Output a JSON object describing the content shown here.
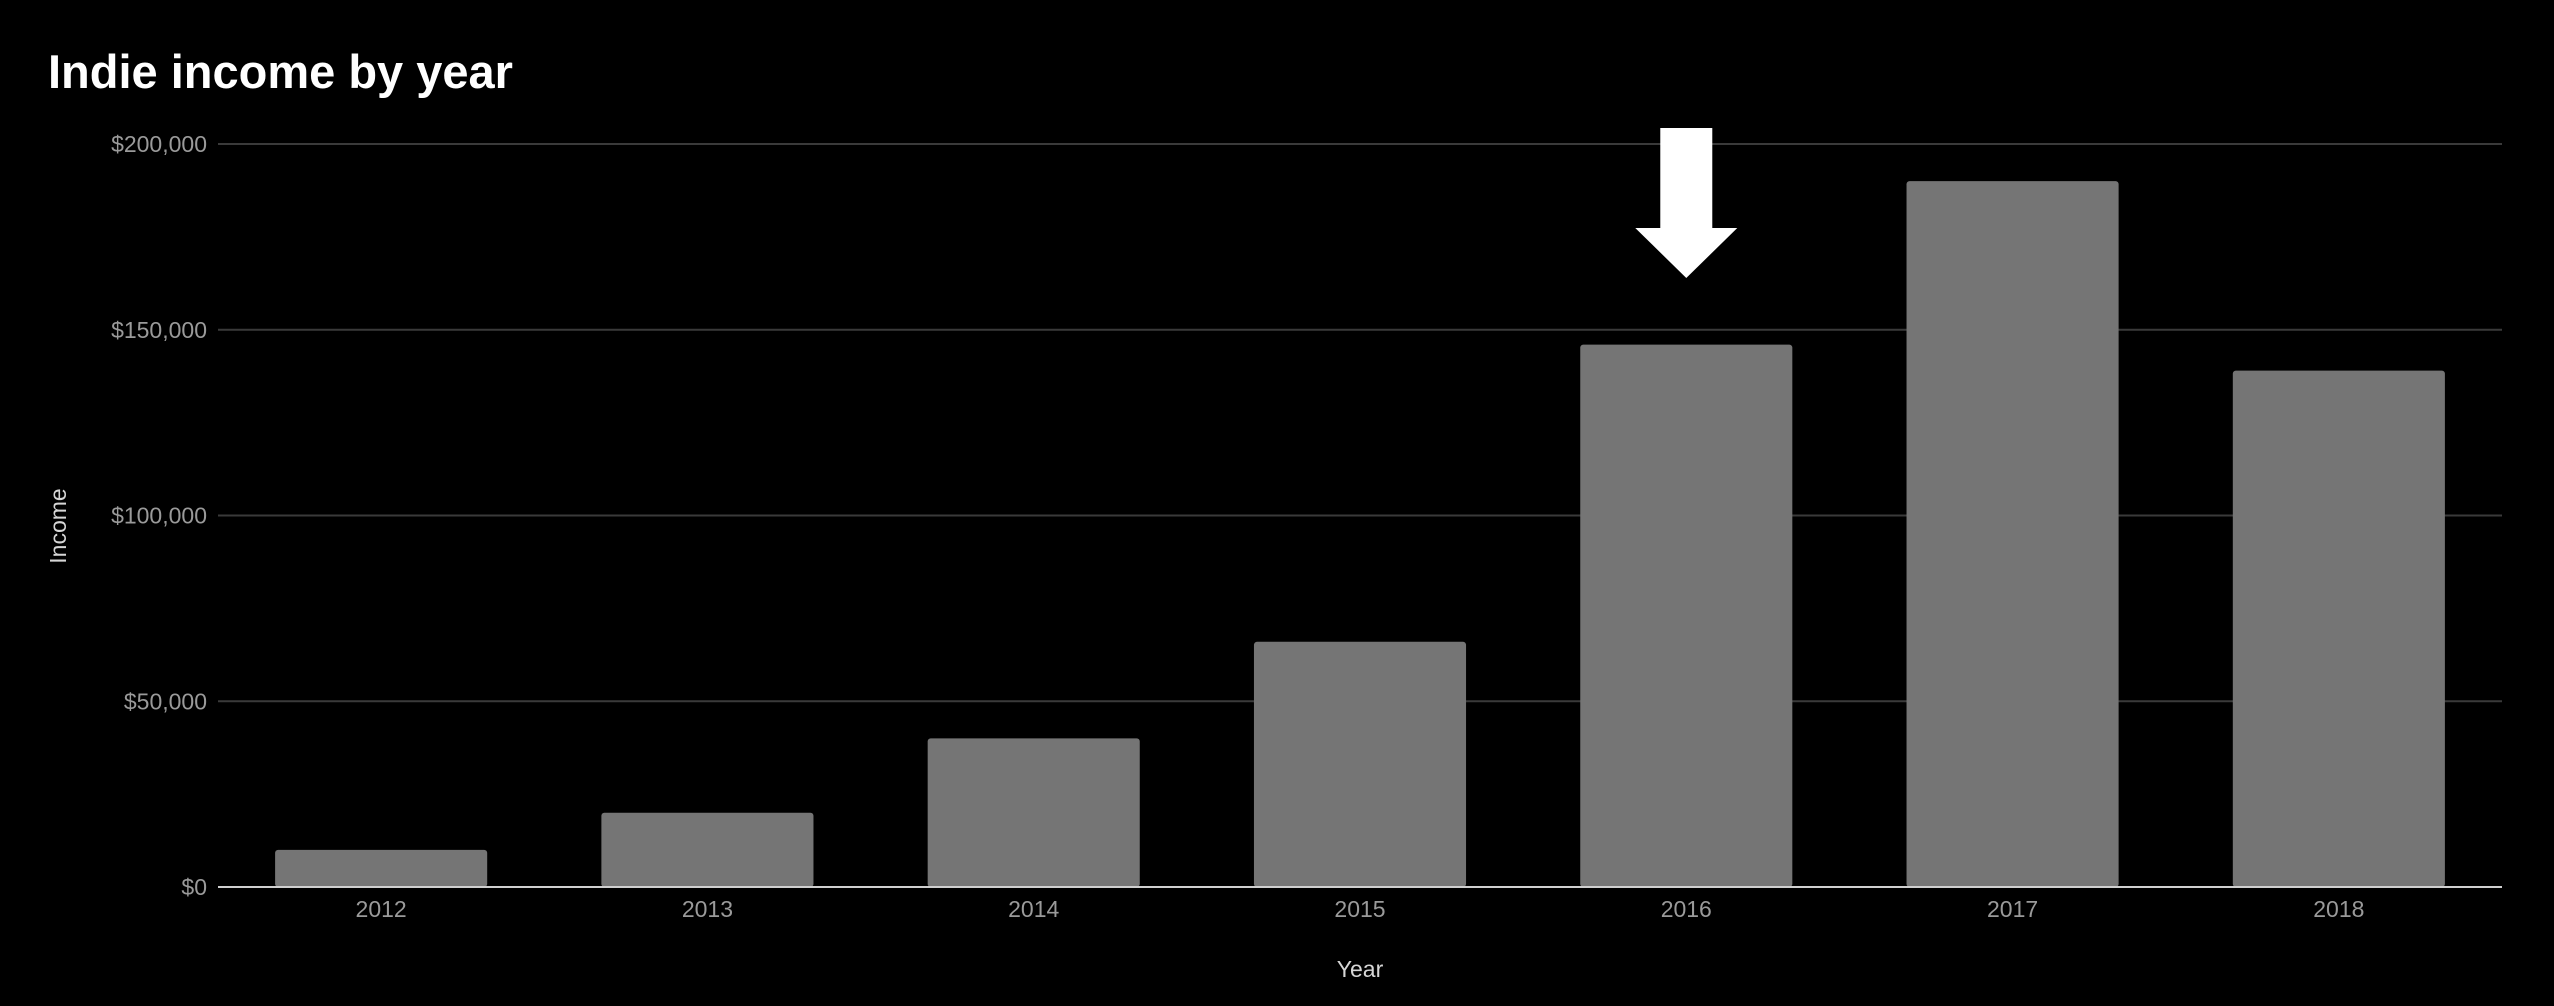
{
  "chart_data": {
    "type": "bar",
    "title": "Indie income by year",
    "xlabel": "Year",
    "ylabel": "Income",
    "categories": [
      "2012",
      "2013",
      "2014",
      "2015",
      "2016",
      "2017",
      "2018"
    ],
    "values": [
      10000,
      20000,
      40000,
      66000,
      146000,
      190000,
      139000
    ],
    "ylim": [
      0,
      200000
    ],
    "y_ticks": [
      {
        "value": 0,
        "label": "$0"
      },
      {
        "value": 50000,
        "label": "$50,000"
      },
      {
        "value": 100000,
        "label": "$100,000"
      },
      {
        "value": 150000,
        "label": "$150,000"
      },
      {
        "value": 200000,
        "label": "$200,000"
      }
    ],
    "grid": true,
    "highlighted_category": "2016",
    "annotation": "down-arrow-marker",
    "colors": {
      "background": "#000000",
      "bar": "#757575",
      "gridline": "#3a3a3a",
      "axis_line": "#cfcfcf",
      "arrow": "#ffffff",
      "title": "#ffffff",
      "tick_label": "#9a9a9a",
      "axis_title": "#d6d6d6"
    }
  }
}
